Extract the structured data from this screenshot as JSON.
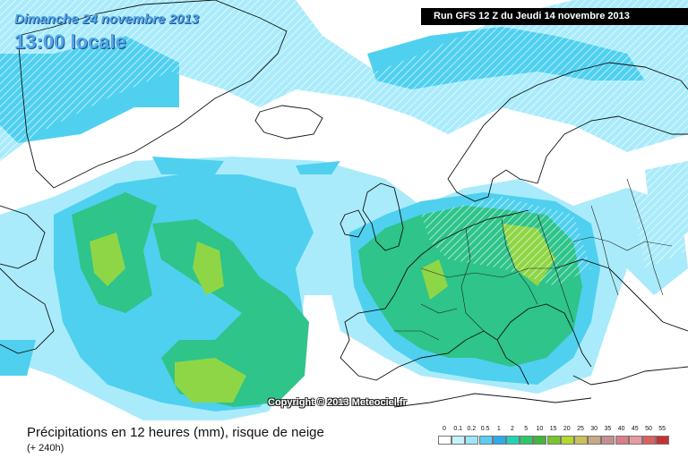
{
  "header": {
    "date": "Dimanche 24 novembre 2013",
    "time": "13:00 locale",
    "run": "Run GFS 12 Z du Jeudi 14 novembre 2013"
  },
  "copyright": "Copyright © 2013 Meteociel.fr",
  "footer": {
    "title": "Précipitations en 12 heures (mm), risque de neige",
    "subtitle": "(+ 240h)"
  },
  "legend": {
    "labels": [
      "0",
      "0.1",
      "0.2",
      "0.5",
      "1",
      "2",
      "5",
      "10",
      "15",
      "20",
      "25",
      "30",
      "35",
      "40",
      "45",
      "50",
      "55"
    ],
    "colors": [
      "#ffffff",
      "#c6f2fb",
      "#9de6fa",
      "#5ccdf2",
      "#2ea9ee",
      "#1fd5b6",
      "#2ec86a",
      "#44b53a",
      "#7ac42e",
      "#b4d82c",
      "#cdbf5a",
      "#c9a784",
      "#c58f8f",
      "#d87f88",
      "#e79aa0",
      "#dd5f5f",
      "#c43333"
    ]
  },
  "colors": {
    "sea": "#ffffff",
    "land_lines": "#111111",
    "precip_light": "#a9ebfb",
    "precip_low": "#4fd0ef",
    "precip_mid": "#2ec48a",
    "precip_high": "#8fd646",
    "snow_hatch": "#ffffff"
  }
}
